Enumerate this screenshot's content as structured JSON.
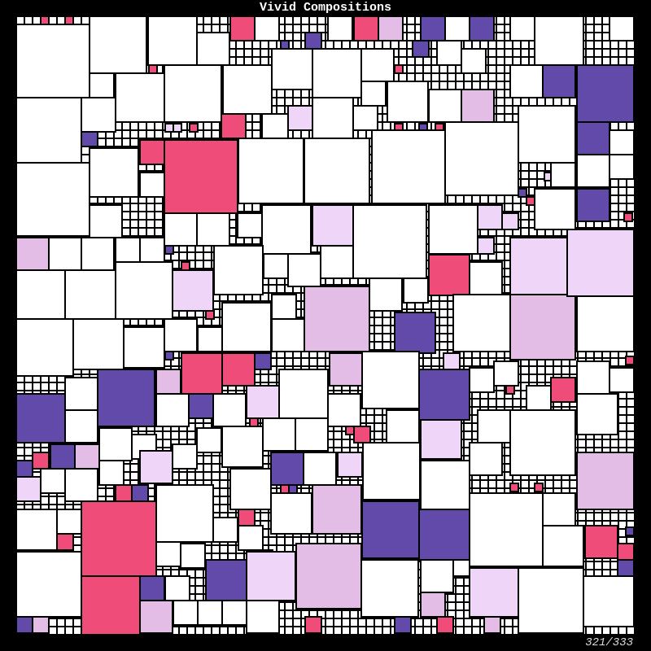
{
  "title": "Vivid Compositions",
  "edition": "321/333",
  "palette": {
    "white": "#ffffff",
    "pink": "#ef4c79",
    "purple": "#624aab",
    "lavender": "#e4bde6",
    "blush": "#efd5f8",
    "background": "#000000"
  }
}
